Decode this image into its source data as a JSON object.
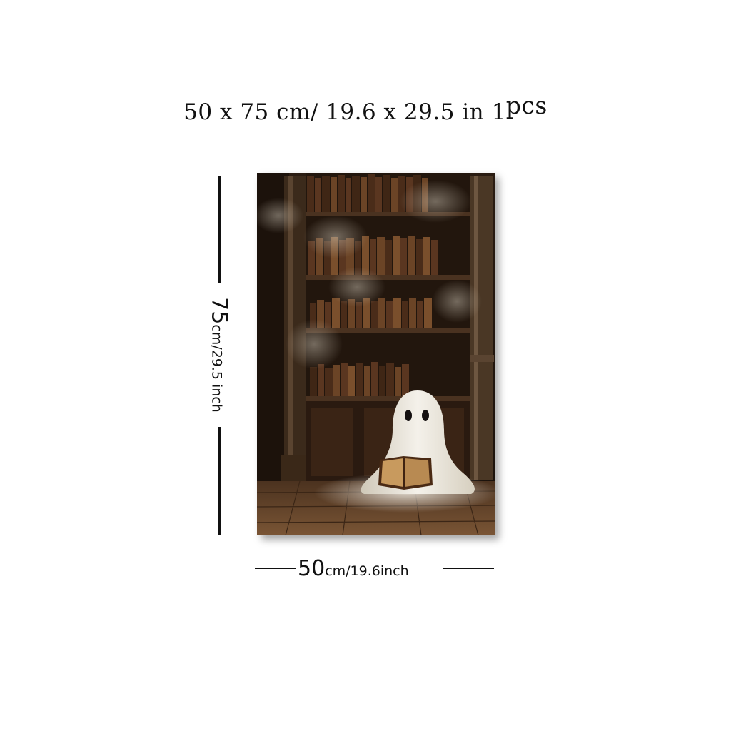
{
  "title": {
    "main": "50 x 75 cm/ 19.6  x  29.5 in ",
    "qty": "1",
    "qty_unit": "pcs"
  },
  "dimensions": {
    "height": {
      "value": "75",
      "unit": "cm/29.5 inch"
    },
    "width": {
      "value": "50",
      "unit": "cm/19.6inch"
    }
  },
  "artwork": {
    "colors": {
      "background": "#1e140d",
      "shelf_wood": "#3a2616",
      "books": [
        "#5a3620",
        "#6b4426",
        "#4a2c19",
        "#7a4f2c",
        "#3f2615"
      ],
      "floor": "#6b4a2f",
      "ghost": "#ece8df"
    }
  }
}
